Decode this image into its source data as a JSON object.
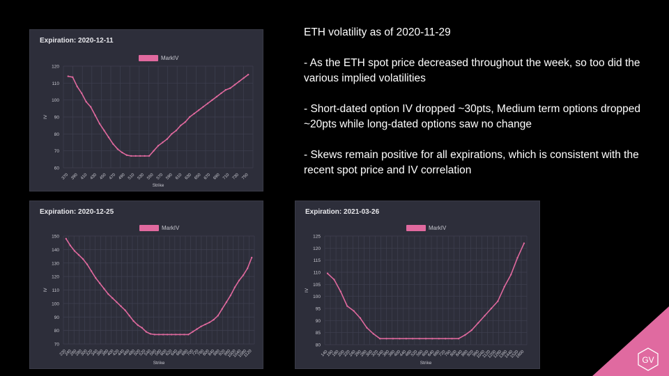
{
  "notes": {
    "heading": "ETH volatility as of 2020-11-29",
    "bullets": [
      "- As the ETH spot price decreased throughout the week, so too did the various implied volatilities",
      "- Short-dated option IV dropped ~30pts, Medium term options dropped ~20pts while long-dated options saw no change",
      "- Skews remain positive for all expirations, which is consistent with the recent spot price and IV correlation"
    ]
  },
  "logo": {
    "text": "GV",
    "color": "#e06aa0"
  },
  "colors": {
    "line": "#e0699e",
    "legend": "#e0699e",
    "panel": "#2d2e3a",
    "grid": "#3f4050",
    "text": "#c8c8d0"
  },
  "chart_data": [
    {
      "type": "line",
      "title": "Expiration: 2020-12-11",
      "xlabel": "Strike",
      "ylabel": "IV",
      "ylim": [
        60,
        120
      ],
      "yticks": [
        60,
        70,
        80,
        90,
        100,
        110,
        120
      ],
      "grid": true,
      "legend_position": "top-center",
      "series": [
        {
          "name": "MarkIV",
          "values": [
            114,
            113.5,
            108,
            104,
            99,
            96,
            91,
            86,
            82,
            78,
            74,
            71,
            69,
            67.5,
            67,
            67,
            67,
            67,
            67,
            70,
            73,
            75,
            77,
            80,
            82,
            85,
            87,
            90,
            92,
            94,
            96,
            98,
            100,
            102,
            104,
            106,
            107,
            109,
            111,
            113,
            115
          ]
        }
      ],
      "tick_labels": [
        "370",
        "390",
        "410",
        "430",
        "450",
        "470",
        "490",
        "510",
        "530",
        "550",
        "570",
        "590",
        "610",
        "630",
        "650",
        "670",
        "690",
        "710",
        "730",
        "750"
      ]
    },
    {
      "type": "line",
      "title": "Expiration: 2020-12-25",
      "xlabel": "Strike",
      "ylabel": "IV",
      "ylim": [
        70,
        150
      ],
      "yticks": [
        70,
        80,
        90,
        100,
        110,
        120,
        130,
        140,
        150
      ],
      "grid": true,
      "legend_position": "top-center",
      "series": [
        {
          "name": "MarkIV",
          "values": [
            148,
            143,
            139,
            136,
            133,
            129,
            124,
            119,
            115,
            111,
            107,
            104,
            101,
            98,
            95,
            91,
            87,
            84,
            82,
            79,
            77.5,
            77,
            77,
            77,
            77,
            77,
            77,
            77,
            77,
            77,
            79,
            81,
            83,
            84.5,
            86,
            88,
            91,
            96,
            101,
            106,
            112,
            117,
            121,
            126,
            134
          ]
        }
      ],
      "tick_labels": [
        "220",
        "240",
        "260",
        "280",
        "300",
        "320",
        "340",
        "360",
        "380",
        "400",
        "420",
        "440",
        "460",
        "480",
        "500",
        "520",
        "540",
        "560",
        "580",
        "600",
        "620",
        "640",
        "660",
        "680",
        "700",
        "720",
        "760",
        "800",
        "840",
        "880",
        "920",
        "960",
        "1000",
        "1040",
        "1080",
        "1120"
      ]
    },
    {
      "type": "line",
      "title": "Expiration: 2021-03-26",
      "xlabel": "Strike",
      "ylabel": "IV",
      "ylim": [
        80,
        125
      ],
      "yticks": [
        80,
        85,
        90,
        95,
        100,
        105,
        110,
        115,
        120,
        125
      ],
      "grid": true,
      "legend_position": "top-center",
      "series": [
        {
          "name": "MarkIV",
          "values": [
            109.5,
            107,
            102,
            96,
            94,
            91,
            87,
            84.5,
            82.5,
            82.5,
            82.5,
            82.5,
            82.5,
            82.5,
            82.5,
            82.5,
            82.5,
            82.5,
            82.5,
            82.5,
            82.5,
            84,
            86,
            89,
            92,
            95,
            98,
            104,
            109,
            116,
            122
          ]
        }
      ],
      "tick_labels": [
        "140",
        "160",
        "180",
        "200",
        "220",
        "240",
        "260",
        "280",
        "300",
        "320",
        "340",
        "360",
        "380",
        "400",
        "440",
        "480",
        "520",
        "560",
        "600",
        "640",
        "680",
        "720",
        "760",
        "800",
        "840",
        "880",
        "920",
        "960",
        "1040",
        "1120",
        "1200",
        "1280",
        "1360",
        "1440",
        "1520",
        "1600"
      ]
    }
  ]
}
